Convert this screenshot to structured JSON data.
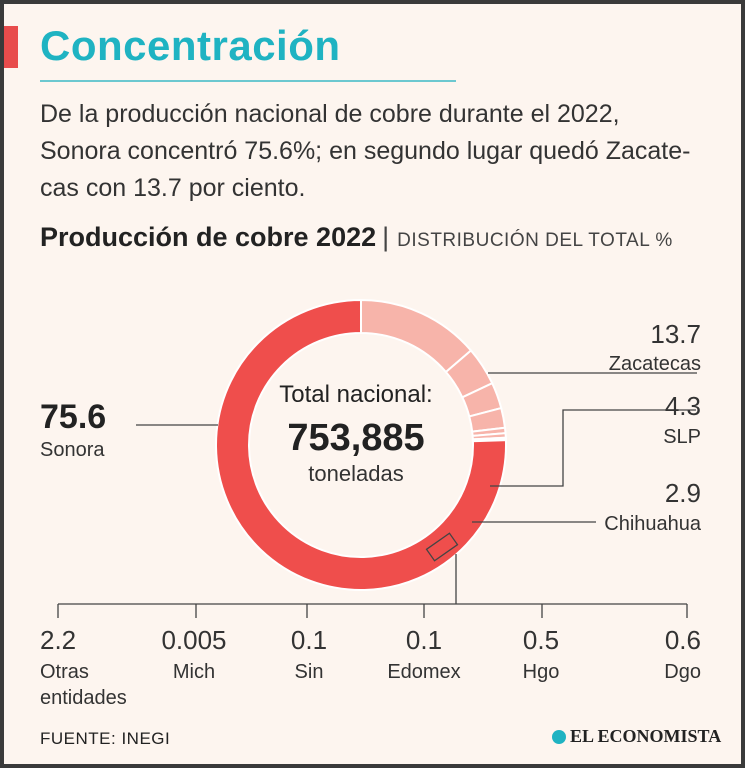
{
  "title": "Concentración",
  "intro_lines": [
    "De la producción nacional de cobre durante el 2022,",
    "Sonora concentró 75.6%; en segundo lugar quedó Zacate-",
    "cas con 13.7 por ciento."
  ],
  "subtitle": "Producción de cobre 2022",
  "subtitle_separator": "|",
  "subtitle_unit": "DISTRIBUCIÓN DEL TOTAL %",
  "source": "FUENTE: INEGI",
  "logo_text": "EL ECONOMISTA",
  "center": {
    "label": "Total nacional:",
    "value": "753,885",
    "unit": "toneladas"
  },
  "colors": {
    "sonora": "#ef4e4c",
    "others": "#f7b4aa",
    "title": "#1fb3c2",
    "background": "#fdf5ef"
  },
  "chart_data": {
    "type": "pie",
    "title": "Producción de cobre 2022",
    "subtitle": "DISTRIBUCIÓN DEL TOTAL %",
    "total": 753885,
    "total_unit": "toneladas",
    "slices": [
      {
        "label": "Sonora",
        "value": 75.6,
        "display": "75.6"
      },
      {
        "label": "Zacatecas",
        "value": 13.7,
        "display": "13.7"
      },
      {
        "label": "SLP",
        "value": 4.3,
        "display": "4.3"
      },
      {
        "label": "Chihuahua",
        "value": 2.9,
        "display": "2.9"
      },
      {
        "label": "Otras entidades",
        "value": 2.2,
        "display": "2.2"
      },
      {
        "label": "Dgo",
        "value": 0.6,
        "display": "0.6"
      },
      {
        "label": "Hgo",
        "value": 0.5,
        "display": "0.5"
      },
      {
        "label": "Edomex",
        "value": 0.1,
        "display": "0.1"
      },
      {
        "label": "Sin",
        "value": 0.1,
        "display": "0.1"
      },
      {
        "label": "Mich",
        "value": 0.005,
        "display": "0.005"
      }
    ]
  }
}
